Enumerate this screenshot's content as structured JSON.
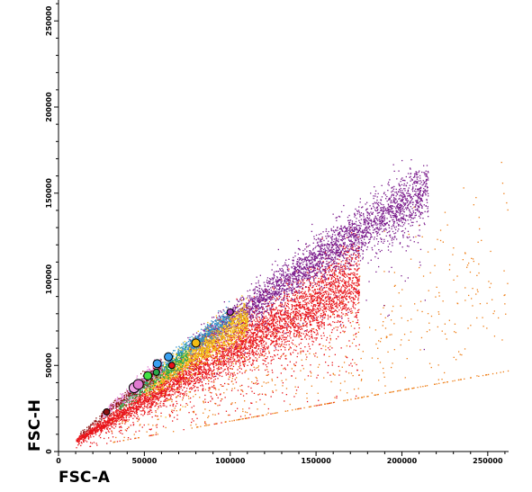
{
  "chart_data": {
    "type": "scatter",
    "title": "",
    "xlabel": "FSC-A",
    "ylabel": "FSC-H",
    "xlim": [
      0,
      262144
    ],
    "ylim": [
      0,
      262144
    ],
    "x_ticks": [
      0,
      50000,
      100000,
      150000,
      200000,
      250000
    ],
    "y_ticks": [
      0,
      50000,
      100000,
      150000,
      200000,
      250000
    ],
    "grid": false,
    "legend": "none",
    "populations": [
      {
        "color": "#e8141a",
        "count": 5200,
        "x_range": [
          10000,
          175000
        ],
        "slope_center": 0.6,
        "slope_spread": 0.07,
        "outlier_fraction": 0.12
      },
      {
        "color": "#ee7d14",
        "count": 600,
        "x_range": [
          30000,
          262000
        ],
        "slope_center": 0.45,
        "slope_spread": 0.12,
        "outlier_fraction": 0.5
      },
      {
        "color": "#7a1b8c",
        "count": 3200,
        "x_range": [
          75000,
          215000
        ],
        "slope_center": 0.77,
        "slope_spread": 0.045,
        "outlier_fraction": 0.06
      },
      {
        "color": "#f2bd13",
        "count": 1500,
        "x_range": [
          50000,
          110000
        ],
        "slope_center": 0.72,
        "slope_spread": 0.05,
        "outlier_fraction": 0.03
      },
      {
        "color": "#2c8fc8",
        "count": 600,
        "x_range": [
          40000,
          100000
        ],
        "slope_center": 0.8,
        "slope_spread": 0.03,
        "outlier_fraction": 0.0
      },
      {
        "color": "#2aa84a",
        "count": 450,
        "x_range": [
          35000,
          75000
        ],
        "slope_center": 0.74,
        "slope_spread": 0.04,
        "outlier_fraction": 0.0
      },
      {
        "color": "#e07ad0",
        "count": 350,
        "x_range": [
          25000,
          60000
        ],
        "slope_center": 0.82,
        "slope_spread": 0.05,
        "outlier_fraction": 0.0
      },
      {
        "color": "#8c1010",
        "count": 260,
        "x_range": [
          12000,
          60000
        ],
        "slope_center": 0.8,
        "slope_spread": 0.05,
        "outlier_fraction": 0.0
      }
    ],
    "centroids": [
      {
        "x": 28000,
        "y": 23000,
        "color": "#8c1010",
        "size": "small"
      },
      {
        "x": 44000,
        "y": 37000,
        "color": "#f0a0e6",
        "size": "large"
      },
      {
        "x": 46500,
        "y": 39000,
        "color": "#e07ad0",
        "size": "large"
      },
      {
        "x": 52000,
        "y": 44000,
        "color": "#44e044",
        "size": "medium"
      },
      {
        "x": 57000,
        "y": 46000,
        "color": "#2aa84a",
        "size": "small"
      },
      {
        "x": 57500,
        "y": 51000,
        "color": "#3aa0f0",
        "size": "medium"
      },
      {
        "x": 64000,
        "y": 55000,
        "color": "#3aa0f0",
        "size": "medium"
      },
      {
        "x": 66000,
        "y": 50000,
        "color": "#e8141a",
        "size": "small"
      },
      {
        "x": 80000,
        "y": 63000,
        "color": "#f2bd13",
        "size": "medium"
      },
      {
        "x": 100000,
        "y": 81000,
        "color": "#a040c0",
        "size": "small"
      }
    ]
  }
}
